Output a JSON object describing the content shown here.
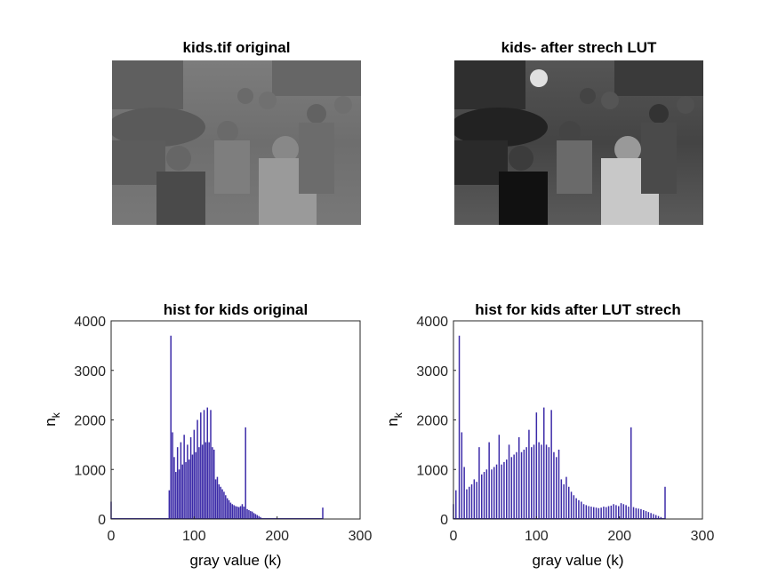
{
  "panels": {
    "top_left_title": "kids.tif original",
    "top_right_title": "kids- after strech LUT"
  },
  "chart_data": [
    {
      "type": "bar",
      "title": "hist for kids original",
      "xlabel": "gray value (k)",
      "ylabel": "n",
      "ylabel_sub": "k",
      "xlim": [
        0,
        300
      ],
      "ylim": [
        0,
        4000
      ],
      "xticks": [
        "0",
        "100",
        "200",
        "300"
      ],
      "yticks": [
        "0",
        "1000",
        "2000",
        "3000",
        "4000"
      ],
      "bar_color": "#3b2aa8",
      "x": [
        0,
        70,
        72,
        74,
        76,
        78,
        80,
        82,
        84,
        86,
        88,
        90,
        92,
        94,
        96,
        98,
        100,
        102,
        104,
        106,
        108,
        110,
        112,
        114,
        116,
        118,
        120,
        122,
        124,
        126,
        128,
        130,
        132,
        134,
        136,
        138,
        140,
        142,
        144,
        146,
        148,
        150,
        152,
        154,
        156,
        158,
        160,
        162,
        164,
        166,
        168,
        170,
        172,
        174,
        176,
        178,
        180,
        182,
        255
      ],
      "values": [
        350,
        580,
        3700,
        1750,
        1250,
        950,
        1450,
        1000,
        1550,
        1100,
        1700,
        1150,
        1500,
        1200,
        1650,
        1300,
        1800,
        1350,
        2000,
        1450,
        2150,
        1500,
        2200,
        1550,
        2250,
        1550,
        2200,
        1450,
        1400,
        800,
        850,
        700,
        650,
        600,
        550,
        480,
        420,
        380,
        330,
        300,
        280,
        260,
        250,
        240,
        260,
        300,
        250,
        1850,
        200,
        180,
        160,
        150,
        120,
        100,
        80,
        60,
        40,
        20,
        230
      ]
    },
    {
      "type": "bar",
      "title": "hist for kids after LUT strech",
      "xlabel": "gray value (k)",
      "ylabel": "n",
      "ylabel_sub": "k",
      "xlim": [
        0,
        300
      ],
      "ylim": [
        0,
        4000
      ],
      "xticks": [
        "0",
        "100",
        "200",
        "300"
      ],
      "yticks": [
        "0",
        "1000",
        "2000",
        "3000",
        "4000"
      ],
      "bar_color": "#3b2aa8",
      "x": [
        0,
        3,
        7,
        10,
        13,
        16,
        19,
        22,
        25,
        28,
        31,
        34,
        37,
        40,
        43,
        46,
        49,
        52,
        55,
        58,
        61,
        64,
        67,
        70,
        73,
        76,
        79,
        82,
        85,
        88,
        91,
        94,
        97,
        100,
        103,
        106,
        109,
        112,
        115,
        118,
        121,
        124,
        127,
        130,
        133,
        136,
        139,
        142,
        145,
        148,
        151,
        154,
        157,
        160,
        163,
        166,
        169,
        172,
        175,
        178,
        181,
        184,
        187,
        190,
        193,
        196,
        199,
        202,
        205,
        208,
        211,
        214,
        217,
        220,
        223,
        226,
        229,
        232,
        235,
        238,
        241,
        244,
        247,
        250,
        255
      ],
      "values": [
        300,
        580,
        3700,
        1750,
        1050,
        600,
        650,
        700,
        800,
        750,
        1450,
        900,
        950,
        1000,
        1550,
        1000,
        1050,
        1100,
        1700,
        1100,
        1150,
        1200,
        1500,
        1250,
        1300,
        1350,
        1650,
        1350,
        1400,
        1450,
        1800,
        1450,
        1500,
        2150,
        1550,
        1500,
        2250,
        1500,
        1450,
        2200,
        1350,
        1250,
        1400,
        800,
        700,
        850,
        650,
        550,
        480,
        420,
        380,
        350,
        300,
        280,
        260,
        250,
        240,
        230,
        220,
        230,
        250,
        240,
        260,
        270,
        300,
        280,
        260,
        320,
        300,
        280,
        250,
        1850,
        240,
        220,
        210,
        200,
        180,
        160,
        140,
        120,
        100,
        80,
        60,
        40,
        650
      ]
    }
  ]
}
